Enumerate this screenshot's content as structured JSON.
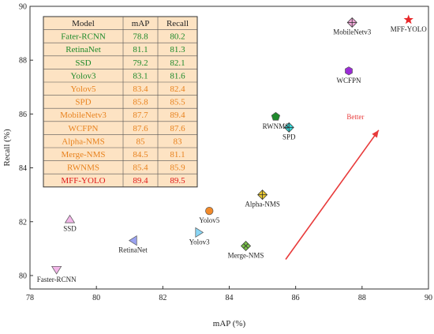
{
  "chart_data": {
    "type": "scatter",
    "xlabel": "mAP (%)",
    "ylabel": "Recall (%)",
    "xlim": [
      78,
      90
    ],
    "ylim": [
      79.5,
      90
    ],
    "xticks": [
      "78",
      "80",
      "82",
      "84",
      "86",
      "88",
      "90"
    ],
    "yticks": [
      "80",
      "82",
      "84",
      "86",
      "88",
      "90"
    ],
    "grid": false,
    "points": [
      {
        "label": "Faster-RCNN",
        "x": 78.8,
        "y": 80.2,
        "marker": "triangle-down",
        "color": "#f2b6e8",
        "label_pos": "below"
      },
      {
        "label": "RetinaNet",
        "x": 81.1,
        "y": 81.3,
        "marker": "triangle-left",
        "color": "#9aa2f0",
        "label_pos": "below"
      },
      {
        "label": "SSD",
        "x": 79.2,
        "y": 82.1,
        "marker": "triangle-up",
        "color": "#f2b6e8",
        "label_pos": "below"
      },
      {
        "label": "Yolov3",
        "x": 83.1,
        "y": 81.6,
        "marker": "triangle-right",
        "color": "#8ad6f5",
        "label_pos": "below"
      },
      {
        "label": "Yolov5",
        "x": 83.4,
        "y": 82.4,
        "marker": "circle",
        "color": "#f28a2a",
        "label_pos": "below"
      },
      {
        "label": "SPD",
        "x": 85.8,
        "y": 85.5,
        "marker": "diamond-cross",
        "color": "#38d6d6",
        "label_pos": "below"
      },
      {
        "label": "MobileNetv3",
        "x": 87.7,
        "y": 89.4,
        "marker": "diamond-cross",
        "color": "#f0a8d8",
        "label_pos": "below"
      },
      {
        "label": "WCFPN",
        "x": 87.6,
        "y": 87.6,
        "marker": "hexagon",
        "color": "#9b2bd6",
        "label_pos": "below"
      },
      {
        "label": "Alpha-NMS",
        "x": 85.0,
        "y": 83.0,
        "marker": "diamond-cross",
        "color": "#e8c830",
        "label_pos": "below"
      },
      {
        "label": "Merge-NMS",
        "x": 84.5,
        "y": 81.1,
        "marker": "diamond-x",
        "color": "#7ac04a",
        "label_pos": "below"
      },
      {
        "label": "RWNMS",
        "x": 85.4,
        "y": 85.9,
        "marker": "pentagon",
        "color": "#1f8a2c",
        "label_pos": "below"
      },
      {
        "label": "MFF-YOLO",
        "x": 89.4,
        "y": 89.5,
        "marker": "star",
        "color": "#e8282a",
        "label_pos": "below"
      }
    ],
    "annotation": {
      "text": "Better",
      "color": "#e83a3a",
      "arrow_from": [
        85.7,
        80.6
      ],
      "arrow_to": [
        88.5,
        85.4
      ],
      "text_at": [
        87.8,
        85.8
      ]
    },
    "table": {
      "headers": [
        "Model",
        "mAP",
        "Recall"
      ],
      "background": "#fde3c3",
      "rows": [
        {
          "model": "Fater-RCNN",
          "map": "78.8",
          "recall": "80.2",
          "color": "#1d8a2a"
        },
        {
          "model": "RetinaNet",
          "map": "81.1",
          "recall": "81.3",
          "color": "#1d8a2a"
        },
        {
          "model": "SSD",
          "map": "79.2",
          "recall": "82.1",
          "color": "#1d8a2a"
        },
        {
          "model": "Yolov3",
          "map": "83.1",
          "recall": "81.6",
          "color": "#1d8a2a"
        },
        {
          "model": "Yolov5",
          "map": "83.4",
          "recall": "82.4",
          "color": "#e8821e"
        },
        {
          "model": "SPD",
          "map": "85.8",
          "recall": "85.5",
          "color": "#e8821e"
        },
        {
          "model": "MobileNetv3",
          "map": "87.7",
          "recall": "89.4",
          "color": "#e8821e"
        },
        {
          "model": "WCFPN",
          "map": "87.6",
          "recall": "87.6",
          "color": "#e8821e"
        },
        {
          "model": "Alpha-NMS",
          "map": "85",
          "recall": "83",
          "color": "#e8821e"
        },
        {
          "model": "Merge-NMS",
          "map": "84.5",
          "recall": "81.1",
          "color": "#e8821e"
        },
        {
          "model": "RWNMS",
          "map": "85.4",
          "recall": "85.9",
          "color": "#e8821e"
        },
        {
          "model": "MFF-YOLO",
          "map": "89.4",
          "recall": "89.5",
          "color": "#e01818"
        }
      ]
    }
  }
}
